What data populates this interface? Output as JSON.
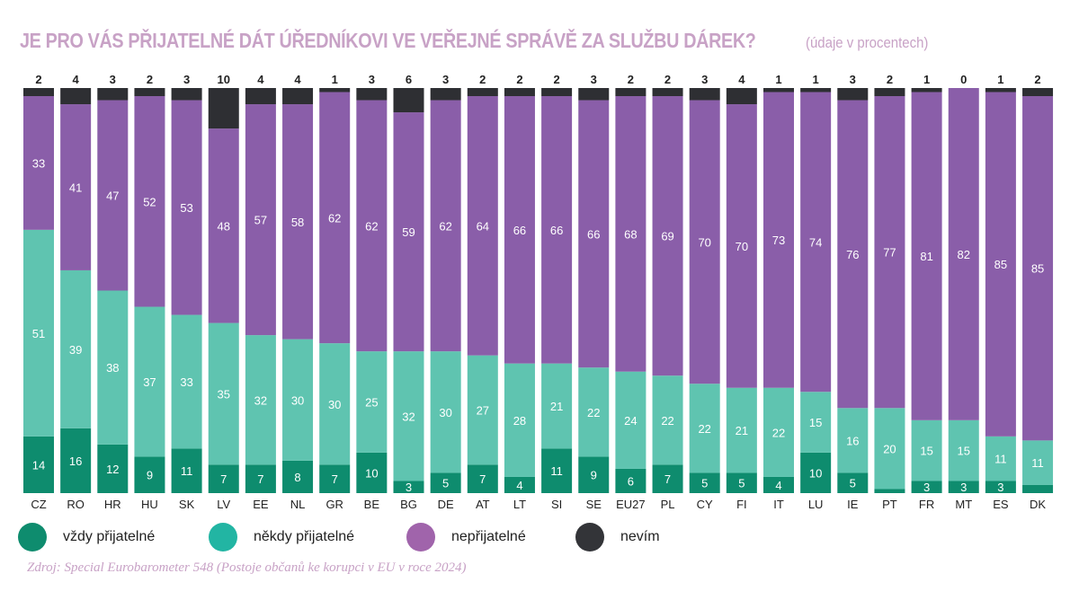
{
  "title": "JE PRO VÁS PŘIJATELNÉ DÁT ÚŘEDNÍKOVI VE VEŘEJNÉ SPRÁVĚ ZA SLUŽBU DÁREK?",
  "subtitle": "(údaje v procentech)",
  "source": "Zdroj: Special Eurobarometer 548 (Postoje občanů ke korupci v EU v roce 2024)",
  "colors": {
    "always": "#0e8c6e",
    "sometimes": "#5fc4b0",
    "never": "#8a5ea9",
    "dontknow": "#2e2f33",
    "title": "#c8a2c6"
  },
  "legend": [
    {
      "label": "vždy přijatelné",
      "color": "#0e8c6e"
    },
    {
      "label": "někdy přijatelné",
      "color": "#22b5a3"
    },
    {
      "label": "nepřijatelné",
      "color": "#a064ab"
    },
    {
      "label": "nevím",
      "color": "#333438"
    }
  ],
  "chart_data": {
    "type": "bar",
    "stacked": true,
    "categories": [
      "CZ",
      "RO",
      "HR",
      "HU",
      "SK",
      "LV",
      "EE",
      "NL",
      "GR",
      "BE",
      "BG",
      "DE",
      "AT",
      "LT",
      "SI",
      "SE",
      "EU27",
      "PL",
      "CY",
      "FI",
      "IT",
      "LU",
      "IE",
      "PT",
      "FR",
      "MT",
      "ES",
      "DK"
    ],
    "series": [
      {
        "name": "vždy přijatelné",
        "values": [
          14,
          16,
          12,
          9,
          11,
          7,
          7,
          8,
          7,
          10,
          3,
          5,
          7,
          4,
          11,
          9,
          6,
          7,
          5,
          5,
          4,
          10,
          5,
          1,
          3,
          3,
          3,
          2
        ]
      },
      {
        "name": "někdy přijatelné",
        "values": [
          51,
          39,
          38,
          37,
          33,
          35,
          32,
          30,
          30,
          25,
          32,
          30,
          27,
          28,
          21,
          22,
          24,
          22,
          22,
          21,
          22,
          15,
          16,
          20,
          15,
          15,
          11,
          11
        ]
      },
      {
        "name": "nepřijatelné",
        "values": [
          33,
          41,
          47,
          52,
          53,
          48,
          57,
          58,
          62,
          62,
          59,
          62,
          64,
          66,
          66,
          66,
          68,
          69,
          70,
          70,
          73,
          74,
          76,
          77,
          81,
          82,
          85,
          85
        ]
      },
      {
        "name": "nevím",
        "values": [
          2,
          4,
          3,
          2,
          3,
          10,
          4,
          4,
          1,
          3,
          6,
          3,
          2,
          2,
          2,
          3,
          2,
          2,
          3,
          4,
          1,
          1,
          3,
          2,
          1,
          0,
          1,
          2
        ]
      }
    ],
    "labels": {
      "always": [
        "14",
        "16",
        "12",
        "9",
        "11",
        "7",
        "7",
        "8",
        "7",
        "10",
        "3",
        "5",
        "7",
        "4",
        "11",
        "9",
        "6",
        "7",
        "5",
        "5",
        "4",
        "10",
        "5",
        "",
        "3",
        "3",
        "3",
        ""
      ],
      "sometimes": [
        "51",
        "39",
        "38",
        "37",
        "33",
        "35",
        "32",
        "30",
        "30",
        "25",
        "32",
        "30",
        "27",
        "28",
        "21",
        "22",
        "24",
        "22",
        "22",
        "21",
        "22",
        "15",
        "16",
        "20",
        "15",
        "15",
        "11",
        "11"
      ],
      "never": [
        "33",
        "41",
        "47",
        "52",
        "53",
        "48",
        "57",
        "58",
        "62",
        "62",
        "59",
        "62",
        "64",
        "66",
        "66",
        "66",
        "68",
        "69",
        "70",
        "70",
        "73",
        "74",
        "76",
        "77",
        "81",
        "82",
        "85",
        "85"
      ],
      "dontknow": [
        "2",
        "4",
        "3",
        "2",
        "3",
        "10",
        "4",
        "4",
        "1",
        "3",
        "6",
        "3",
        "2",
        "2",
        "2",
        "3",
        "2",
        "2",
        "3",
        "4",
        "1",
        "1",
        "3",
        "2",
        "1",
        "0",
        "1",
        "2"
      ]
    },
    "ylim": [
      0,
      100
    ]
  }
}
